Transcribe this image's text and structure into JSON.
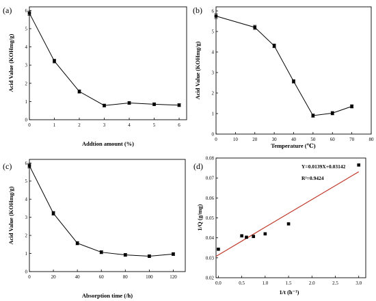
{
  "chart_data": [
    {
      "panel": "(a)",
      "type": "line",
      "xlabel": "Addtion amount (%)",
      "ylabel": "Acid Value (KOHmg/g)",
      "xlim": [
        0,
        6.3
      ],
      "ylim": [
        0,
        6.2
      ],
      "xticks": [
        "0",
        "1",
        "2",
        "3",
        "4",
        "5",
        "6"
      ],
      "yticks": [
        "0",
        "1",
        "2",
        "3",
        "4",
        "5",
        "6"
      ],
      "marker": "square",
      "error_bars": true,
      "x": [
        0,
        1,
        2,
        3,
        4,
        5,
        6
      ],
      "y": [
        5.85,
        3.22,
        1.55,
        0.78,
        0.92,
        0.85,
        0.8
      ],
      "err": [
        0.12,
        0.1,
        0.09,
        0.08,
        0.08,
        0.08,
        0.08
      ]
    },
    {
      "panel": "(b)",
      "type": "line",
      "xlabel": "Temperature (℃)",
      "ylabel": "Acid Value (KOHmg/g)",
      "xlim": [
        0,
        80
      ],
      "ylim": [
        0,
        6.2
      ],
      "xticks": [
        "0",
        "10",
        "20",
        "30",
        "40",
        "50",
        "60",
        "70",
        "80"
      ],
      "yticks": [
        "0",
        "1",
        "2",
        "3",
        "4",
        "5",
        "6"
      ],
      "marker": "square",
      "error_bars": true,
      "x": [
        0,
        20,
        30,
        40,
        50,
        60,
        70
      ],
      "y": [
        5.75,
        5.2,
        4.3,
        2.57,
        0.9,
        1.02,
        1.35
      ],
      "err": [
        0.12,
        0.1,
        0.09,
        0.08,
        0.08,
        0.08,
        0.08
      ]
    },
    {
      "panel": "(c)",
      "type": "line",
      "xlabel": "Absorption time (/h)",
      "ylabel": "Acid Value (KOHmg/g)",
      "xlim": [
        0,
        130
      ],
      "ylim": [
        0,
        6.2
      ],
      "xticks": [
        "0",
        "20",
        "40",
        "60",
        "80",
        "100",
        "120"
      ],
      "yticks": [
        "0",
        "1",
        "2",
        "3",
        "4",
        "5",
        "6"
      ],
      "marker": "square",
      "error_bars": true,
      "x": [
        0,
        20,
        40,
        60,
        80,
        100,
        120
      ],
      "y": [
        5.85,
        3.22,
        1.57,
        1.07,
        0.92,
        0.85,
        0.97
      ],
      "err": [
        0.12,
        0.1,
        0.09,
        0.08,
        0.08,
        0.08,
        0.08
      ]
    },
    {
      "panel": "(d)",
      "type": "scatter",
      "xlabel": "1/t (h⁻¹)",
      "ylabel": "1/Q (g/mg)",
      "xlim": [
        -0.05,
        3.15
      ],
      "ylim": [
        0.02,
        0.08
      ],
      "xticks": [
        "0.0",
        "0.5",
        "1.0",
        "1.5",
        "2.0",
        "2.5",
        "3.0"
      ],
      "yticks": [
        "0.02",
        "0.03",
        "0.04",
        "0.05",
        "0.06",
        "0.07",
        "0.08"
      ],
      "marker": "square",
      "fit_color": "#c0392b",
      "fit_slope": 0.0139,
      "fit_intercept": 0.03142,
      "equation": "Y=0.0139X+0.03142",
      "r2": "R²=0.9424",
      "x": [
        0.0,
        0.5,
        0.6,
        0.75,
        1.0,
        1.5,
        3.0
      ],
      "y": [
        0.0343,
        0.041,
        0.0403,
        0.0407,
        0.042,
        0.047,
        0.0765
      ]
    }
  ]
}
